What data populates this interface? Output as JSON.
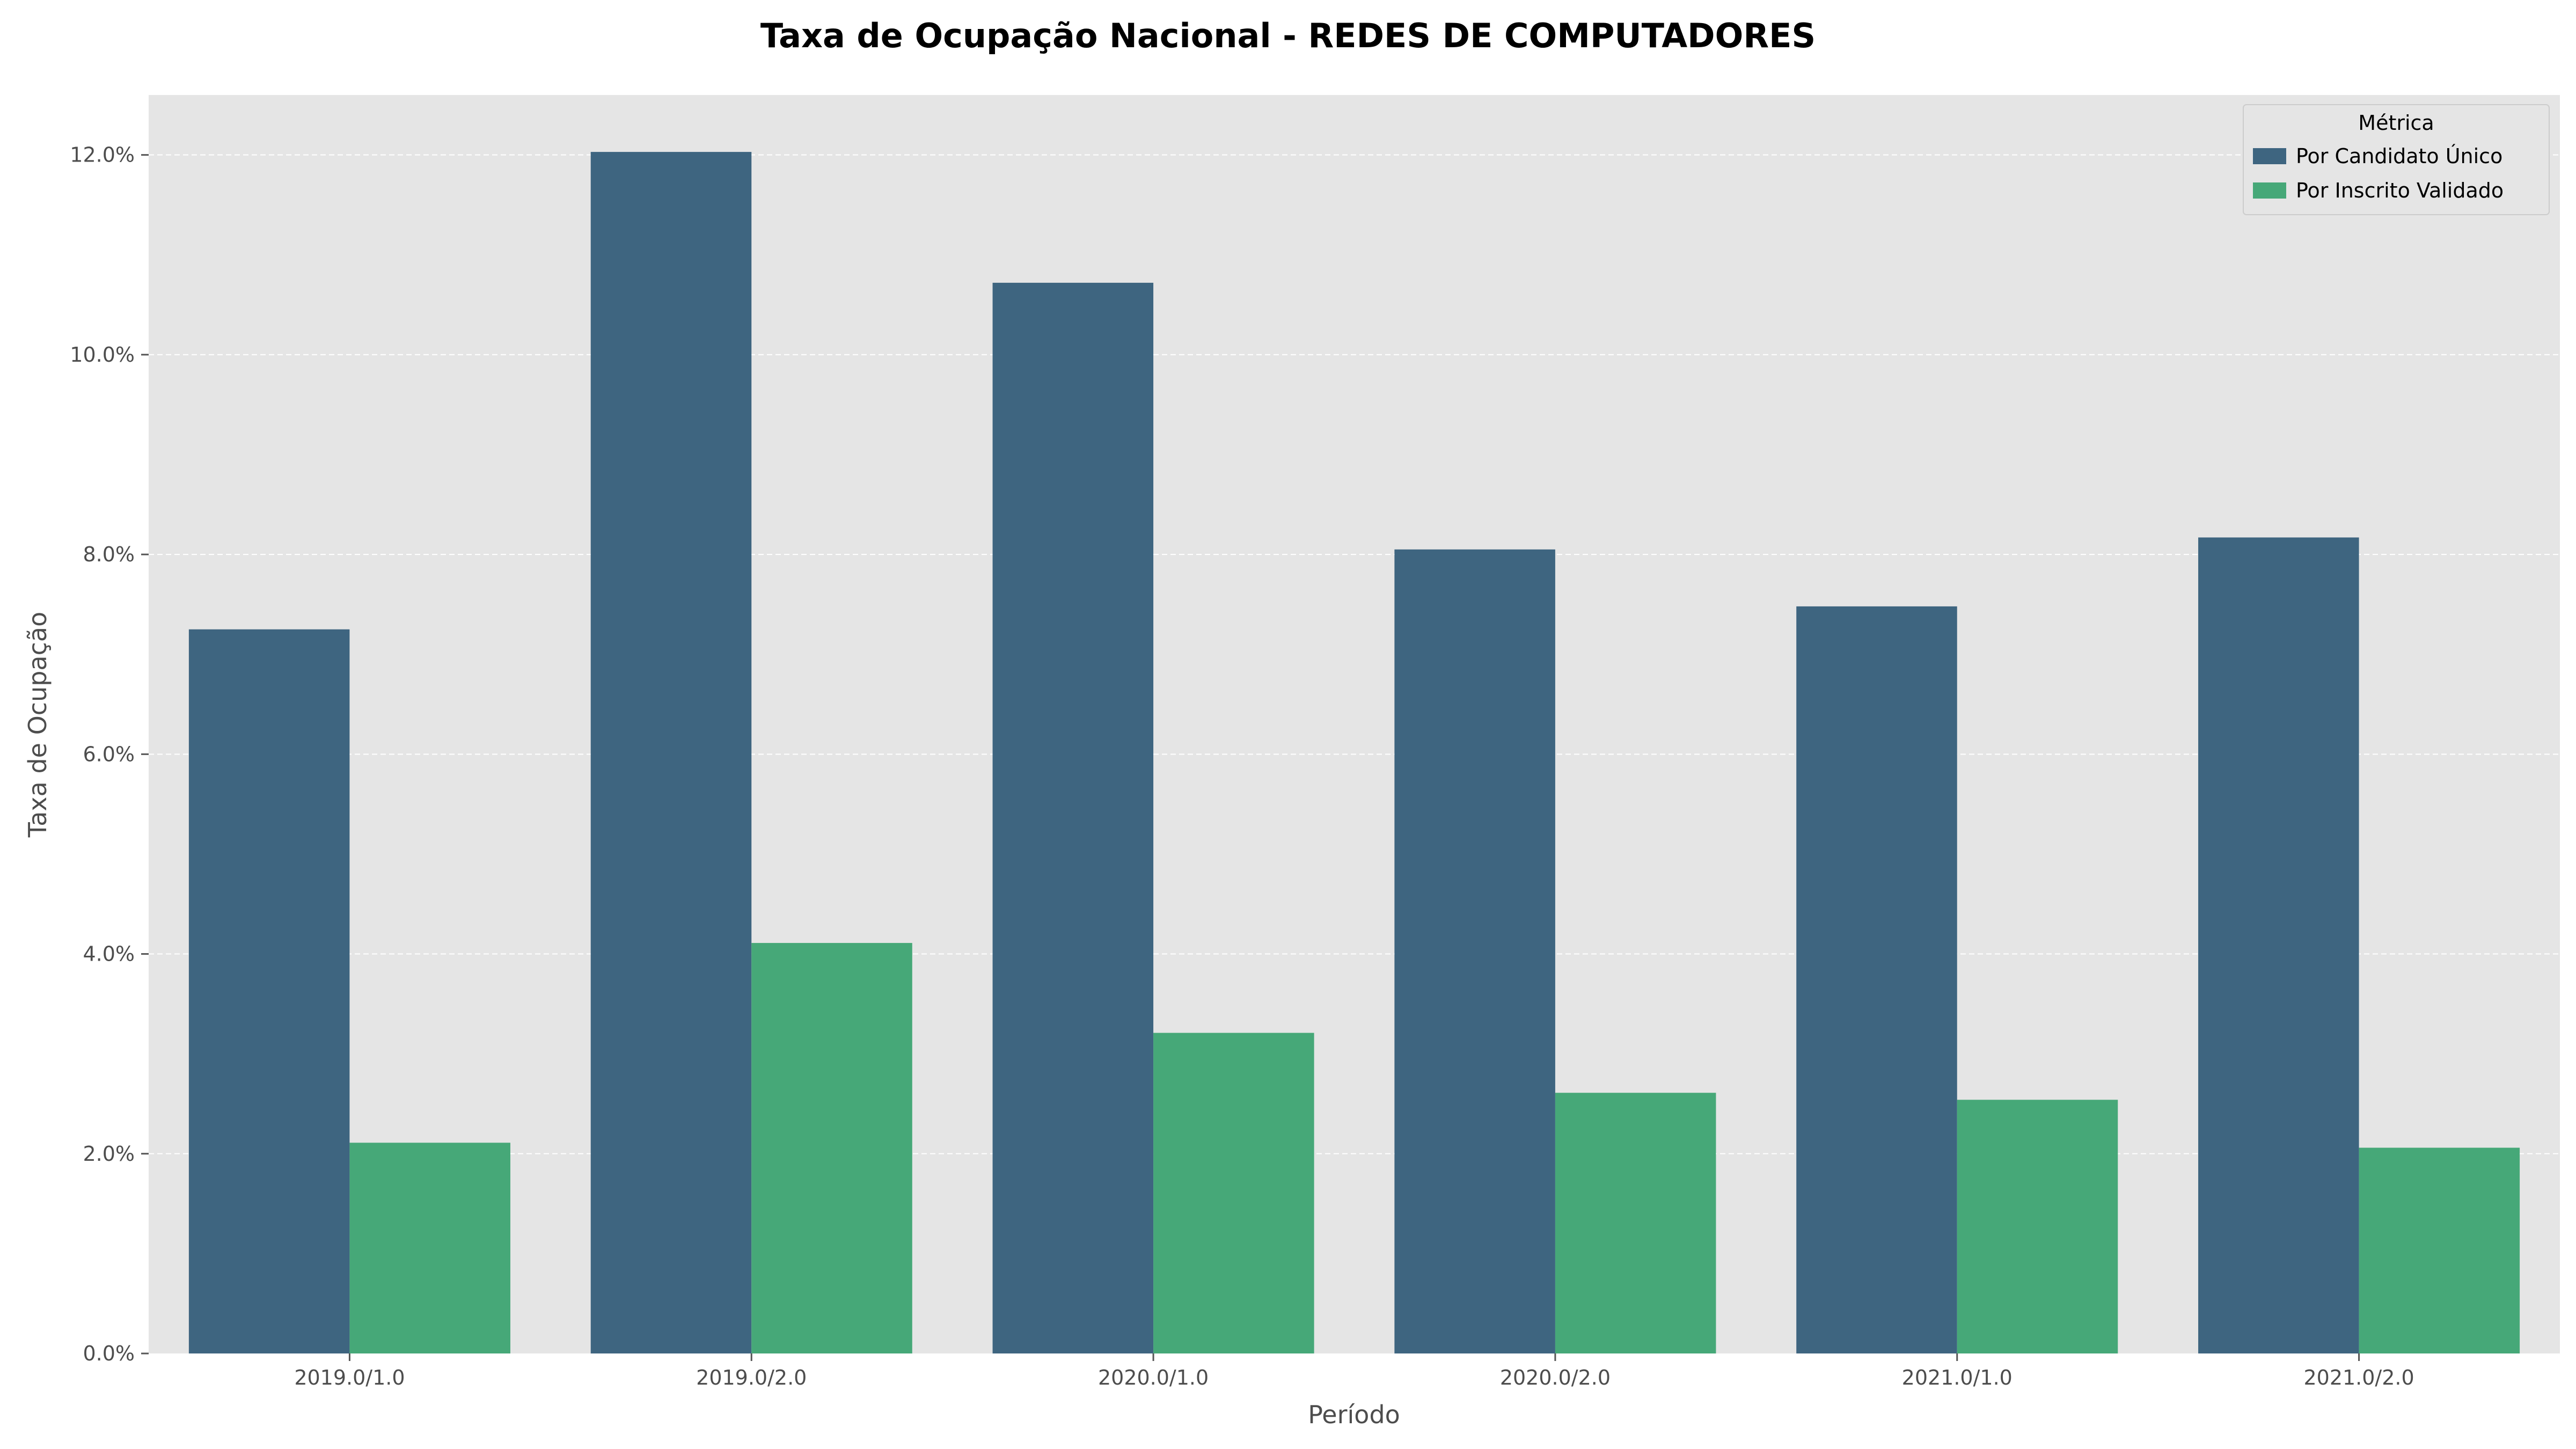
{
  "chart_data": {
    "type": "bar",
    "title": "Taxa de Ocupação Nacional - REDES DE COMPUTADORES",
    "xlabel": "Período",
    "ylabel": "Taxa de Ocupação",
    "categories": [
      "2019.0/1.0",
      "2019.0/2.0",
      "2020.0/1.0",
      "2020.0/2.0",
      "2021.0/1.0",
      "2021.0/2.0"
    ],
    "series": [
      {
        "name": "Por Candidato Único",
        "color": "#3e6580",
        "values": [
          7.25,
          12.03,
          10.72,
          8.05,
          7.48,
          8.17
        ]
      },
      {
        "name": "Por Inscrito Validado",
        "color": "#46a878",
        "values": [
          2.11,
          4.11,
          3.21,
          2.61,
          2.54,
          2.06
        ]
      }
    ],
    "ylim": [
      0,
      12.6
    ],
    "yticks": [
      0,
      2,
      4,
      6,
      8,
      10,
      12
    ],
    "ytick_labels": [
      "0.0%",
      "2.0%",
      "4.0%",
      "6.0%",
      "8.0%",
      "10.0%",
      "12.0%"
    ],
    "legend_title": "Métrica",
    "legend_position": "top-right",
    "grid": true,
    "background_color": "#e5e5e5",
    "grid_color": "#ffffff"
  }
}
